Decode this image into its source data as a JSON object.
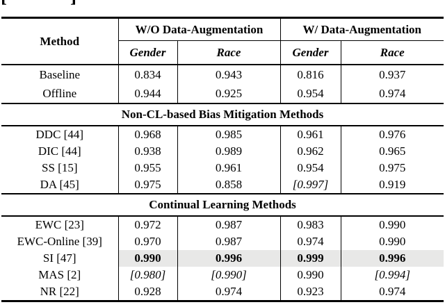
{
  "top_fragments": {
    "left": "[",
    "right": "]"
  },
  "colors": {
    "highlight_row": "#e8e8e7",
    "text": "#000000",
    "background": "#ffffff"
  },
  "table": {
    "header": {
      "method": "Method",
      "groups": [
        {
          "label": "W/O Data-Augmentation"
        },
        {
          "label": "W/ Data-Augmentation"
        }
      ],
      "subcols": [
        "Gender",
        "Race",
        "Gender",
        "Race"
      ]
    },
    "sections": [
      {
        "title": "",
        "rows": [
          {
            "method": "Baseline",
            "values": [
              "0.834",
              "0.943",
              "0.816",
              "0.937"
            ]
          },
          {
            "method": "Offline",
            "values": [
              "0.944",
              "0.925",
              "0.954",
              "0.974"
            ]
          }
        ]
      },
      {
        "title": "Non-CL-based Bias Mitigation Methods",
        "rows": [
          {
            "method": "DDC [44]",
            "values": [
              "0.968",
              "0.985",
              "0.961",
              "0.976"
            ]
          },
          {
            "method": "DIC [44]",
            "values": [
              "0.938",
              "0.989",
              "0.962",
              "0.965"
            ]
          },
          {
            "method": "SS [15]",
            "values": [
              "0.955",
              "0.961",
              "0.954",
              "0.975"
            ]
          },
          {
            "method": "DA [45]",
            "values": [
              "0.975",
              "0.858",
              "[0.997]",
              "0.919"
            ]
          }
        ]
      },
      {
        "title": "Continual Learning Methods",
        "rows": [
          {
            "method": "EWC [23]",
            "values": [
              "0.972",
              "0.987",
              "0.983",
              "0.990"
            ]
          },
          {
            "method": "EWC-Online [39]",
            "values": [
              "0.970",
              "0.987",
              "0.974",
              "0.990"
            ]
          },
          {
            "method": "SI [47]",
            "values": [
              "0.990",
              "0.996",
              "0.999",
              "0.996"
            ]
          },
          {
            "method": "MAS [2]",
            "values": [
              "[0.980]",
              "[0.990]",
              "0.990",
              "[0.994]"
            ]
          },
          {
            "method": "NR [22]",
            "values": [
              "0.928",
              "0.974",
              "0.923",
              "0.974"
            ]
          }
        ]
      }
    ]
  }
}
